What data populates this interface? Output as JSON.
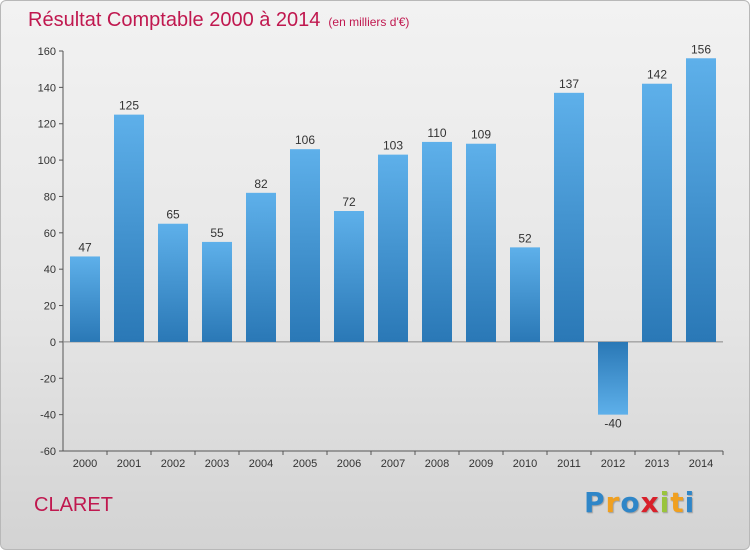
{
  "title": "Résultat Comptable 2000 à 2014",
  "subtitle": "(en milliers d'€)",
  "commune": "CLARET",
  "logo": {
    "text": "Proxiti",
    "letters": [
      "P",
      "r",
      "o",
      "x",
      "i",
      "t",
      "i"
    ]
  },
  "chart_data": {
    "type": "bar",
    "categories": [
      "2000",
      "2001",
      "2002",
      "2003",
      "2004",
      "2005",
      "2006",
      "2007",
      "2008",
      "2009",
      "2010",
      "2011",
      "2012",
      "2013",
      "2014"
    ],
    "values": [
      47,
      125,
      65,
      55,
      82,
      106,
      72,
      103,
      110,
      109,
      52,
      137,
      -40,
      142,
      156
    ],
    "ylim": [
      -60,
      160
    ],
    "yticks": [
      -60,
      -40,
      -20,
      0,
      20,
      40,
      60,
      80,
      100,
      120,
      140,
      160
    ],
    "grid": false,
    "colors": {
      "bar_light": "#5eb0ea",
      "bar_dark": "#2a78b6",
      "text": "#c0184f"
    }
  }
}
